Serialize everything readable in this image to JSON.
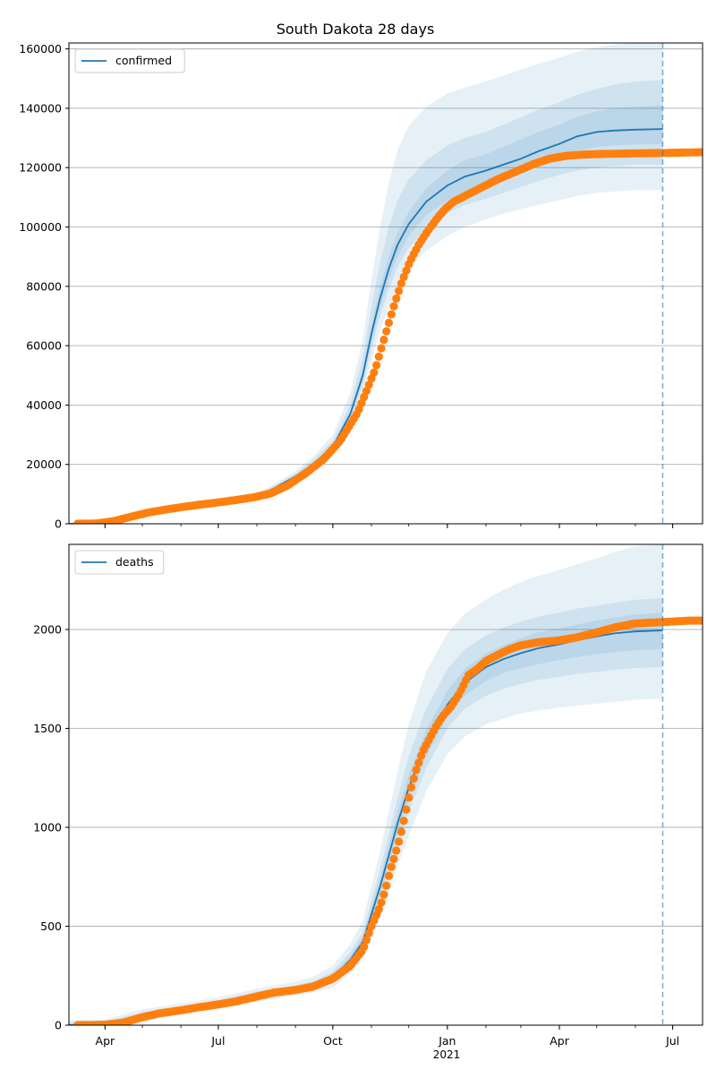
{
  "title": "South Dakota 28 days",
  "colors": {
    "model_line": "#1f77b4",
    "observed": "#ff7f0e",
    "band": "#1f77b4",
    "grid": "#b0b0b0",
    "forecast_marker": "#1f77b4"
  },
  "x_axis": {
    "tick_labels": [
      "Apr",
      "Jul",
      "Oct",
      "Jan",
      "Apr",
      "Jul"
    ],
    "tick_dates": [
      "2020-04-01",
      "2020-07-01",
      "2020-10-01",
      "2021-01-01",
      "2021-04-01",
      "2021-07-01"
    ],
    "year_label": "2021",
    "range": [
      "2020-03-03",
      "2021-07-25"
    ],
    "forecast_date": "2021-06-23"
  },
  "chart_data": [
    {
      "type": "line",
      "name": "confirmed-panel",
      "legend": "confirmed",
      "legend_position": "upper left",
      "grid": "y",
      "ylim": [
        0,
        162000
      ],
      "yticks": [
        0,
        20000,
        40000,
        60000,
        80000,
        100000,
        120000,
        140000,
        160000
      ],
      "ytick_labels": [
        "0",
        "20000",
        "40000",
        "60000",
        "80000",
        "100000",
        "120000",
        "140000",
        "160000"
      ],
      "model": {
        "x": [
          "2020-03-03",
          "2020-04-01",
          "2020-05-01",
          "2020-06-01",
          "2020-07-01",
          "2020-08-01",
          "2020-08-15",
          "2020-09-01",
          "2020-09-15",
          "2020-10-01",
          "2020-10-15",
          "2020-10-25",
          "2020-11-01",
          "2020-11-08",
          "2020-11-15",
          "2020-11-22",
          "2020-12-01",
          "2020-12-15",
          "2021-01-01",
          "2021-01-15",
          "2021-02-01",
          "2021-02-15",
          "2021-03-01",
          "2021-03-15",
          "2021-04-01",
          "2021-04-15",
          "2021-05-01",
          "2021-05-15",
          "2021-06-01",
          "2021-06-23"
        ],
        "y": [
          0,
          300,
          3800,
          5600,
          7300,
          9300,
          12000,
          16000,
          20000,
          26000,
          37000,
          50000,
          64000,
          76000,
          86000,
          94000,
          101000,
          108500,
          114000,
          117000,
          119000,
          121000,
          123000,
          125500,
          128000,
          130500,
          132000,
          132500,
          132800,
          133000
        ]
      },
      "bands": [
        {
          "label": "outer",
          "x": [
            "2020-03-03",
            "2020-04-01",
            "2020-05-01",
            "2020-06-01",
            "2020-07-01",
            "2020-08-01",
            "2020-08-15",
            "2020-09-01",
            "2020-09-15",
            "2020-10-01",
            "2020-10-15",
            "2020-10-25",
            "2020-11-01",
            "2020-11-08",
            "2020-11-15",
            "2020-11-22",
            "2020-12-01",
            "2020-12-15",
            "2021-01-01",
            "2021-01-15",
            "2021-02-01",
            "2021-02-15",
            "2021-03-01",
            "2021-03-15",
            "2021-04-01",
            "2021-04-15",
            "2021-05-01",
            "2021-05-15",
            "2021-06-01",
            "2021-06-23"
          ],
          "low": [
            0,
            250,
            3300,
            5000,
            6700,
            8600,
            11000,
            14800,
            18500,
            23500,
            33000,
            43500,
            55000,
            65000,
            73000,
            80000,
            86000,
            92000,
            97000,
            100000,
            102500,
            104500,
            106000,
            107500,
            109000,
            110500,
            111500,
            112000,
            112500,
            112500
          ],
          "high": [
            0,
            400,
            4400,
            6300,
            8100,
            10300,
            13400,
            17800,
            22500,
            30000,
            44000,
            62000,
            82000,
            100000,
            115000,
            126000,
            134000,
            140500,
            145000,
            147000,
            149000,
            151000,
            153000,
            155000,
            157000,
            159000,
            160500,
            161500,
            162000,
            162000
          ]
        },
        {
          "label": "middle",
          "x": [
            "2020-03-03",
            "2020-04-01",
            "2020-05-01",
            "2020-06-01",
            "2020-07-01",
            "2020-08-01",
            "2020-08-15",
            "2020-09-01",
            "2020-09-15",
            "2020-10-01",
            "2020-10-15",
            "2020-10-25",
            "2020-11-01",
            "2020-11-08",
            "2020-11-15",
            "2020-11-22",
            "2020-12-01",
            "2020-12-15",
            "2021-01-01",
            "2021-01-15",
            "2021-02-01",
            "2021-02-15",
            "2021-03-01",
            "2021-03-15",
            "2021-04-01",
            "2021-04-15",
            "2021-05-01",
            "2021-05-15",
            "2021-06-01",
            "2021-06-23"
          ],
          "low": [
            0,
            270,
            3500,
            5300,
            7000,
            9000,
            11500,
            15400,
            19200,
            24800,
            35000,
            46500,
            59000,
            70000,
            79000,
            86500,
            93000,
            99500,
            104500,
            107500,
            109500,
            111500,
            113500,
            115500,
            117500,
            119000,
            120000,
            120500,
            121000,
            121000
          ],
          "high": [
            0,
            350,
            4150,
            5950,
            7700,
            9800,
            12800,
            17000,
            21400,
            28000,
            40500,
            56000,
            73000,
            88000,
            100000,
            109000,
            116000,
            122500,
            127500,
            130000,
            132000,
            134500,
            137000,
            139500,
            142000,
            144500,
            146500,
            148000,
            149000,
            149500
          ]
        },
        {
          "label": "inner",
          "x": [
            "2020-03-03",
            "2020-04-01",
            "2020-05-01",
            "2020-06-01",
            "2020-07-01",
            "2020-08-01",
            "2020-08-15",
            "2020-09-01",
            "2020-09-15",
            "2020-10-01",
            "2020-10-15",
            "2020-10-25",
            "2020-11-01",
            "2020-11-08",
            "2020-11-15",
            "2020-11-22",
            "2020-12-01",
            "2020-12-15",
            "2021-01-01",
            "2021-01-15",
            "2021-02-01",
            "2021-02-15",
            "2021-03-01",
            "2021-03-15",
            "2021-04-01",
            "2021-04-15",
            "2021-05-01",
            "2021-05-15",
            "2021-06-01",
            "2021-06-23"
          ],
          "low": [
            0,
            285,
            3650,
            5450,
            7150,
            9150,
            11750,
            15700,
            19600,
            25400,
            36000,
            48000,
            61500,
            73000,
            82500,
            90000,
            97000,
            104000,
            109000,
            112000,
            114000,
            116000,
            118500,
            121000,
            123500,
            125500,
            127000,
            127500,
            127800,
            128000
          ],
          "high": [
            0,
            320,
            3950,
            5750,
            7450,
            9450,
            12250,
            16300,
            20400,
            26600,
            38000,
            52000,
            67000,
            80000,
            90000,
            98000,
            105000,
            113000,
            119000,
            122500,
            124500,
            127000,
            129500,
            132000,
            134500,
            137000,
            139000,
            140000,
            140500,
            141000
          ]
        }
      ],
      "observed": {
        "x": [
          "2020-03-10",
          "2020-03-25",
          "2020-04-08",
          "2020-04-22",
          "2020-05-06",
          "2020-05-20",
          "2020-06-03",
          "2020-06-17",
          "2020-07-01",
          "2020-07-15",
          "2020-07-29",
          "2020-08-12",
          "2020-08-26",
          "2020-09-09",
          "2020-09-23",
          "2020-10-07",
          "2020-10-21",
          "2020-11-04",
          "2020-11-11",
          "2020-11-18",
          "2020-11-25",
          "2020-12-02",
          "2020-12-09",
          "2020-12-16",
          "2020-12-23",
          "2020-12-30",
          "2021-01-06",
          "2021-01-13",
          "2021-01-20",
          "2021-01-27",
          "2021-02-03",
          "2021-02-10",
          "2021-02-24",
          "2021-03-10",
          "2021-03-24",
          "2021-04-07",
          "2021-04-21",
          "2021-05-05",
          "2021-05-19",
          "2021-06-02",
          "2021-06-16",
          "2021-06-30",
          "2021-07-14",
          "2021-07-25"
        ],
        "y": [
          10,
          100,
          900,
          2400,
          3800,
          4800,
          5700,
          6500,
          7200,
          8000,
          8900,
          10200,
          13000,
          17000,
          21500,
          28000,
          37500,
          52000,
          62000,
          72000,
          81000,
          88500,
          94000,
          98500,
          102500,
          106000,
          108500,
          110000,
          111500,
          113000,
          114500,
          116000,
          118500,
          121000,
          123000,
          124000,
          124400,
          124600,
          124700,
          124800,
          124900,
          125000,
          125100,
          125200
        ]
      }
    },
    {
      "type": "line",
      "name": "deaths-panel",
      "legend": "deaths",
      "legend_position": "upper left",
      "grid": "y",
      "ylim": [
        0,
        2430
      ],
      "yticks": [
        0,
        500,
        1000,
        1500,
        2000
      ],
      "ytick_labels": [
        "0",
        "500",
        "1000",
        "1500",
        "2000"
      ],
      "model": {
        "x": [
          "2020-03-03",
          "2020-04-01",
          "2020-05-01",
          "2020-06-01",
          "2020-07-01",
          "2020-08-01",
          "2020-09-01",
          "2020-09-15",
          "2020-10-01",
          "2020-10-15",
          "2020-10-25",
          "2020-11-01",
          "2020-11-08",
          "2020-11-15",
          "2020-11-22",
          "2020-12-01",
          "2020-12-15",
          "2021-01-01",
          "2021-01-15",
          "2021-02-01",
          "2021-02-15",
          "2021-03-01",
          "2021-03-15",
          "2021-04-01",
          "2021-04-15",
          "2021-05-01",
          "2021-05-15",
          "2021-06-01",
          "2021-06-23"
        ],
        "y": [
          0,
          10,
          50,
          80,
          110,
          150,
          180,
          200,
          240,
          330,
          420,
          560,
          700,
          860,
          1020,
          1200,
          1420,
          1620,
          1730,
          1810,
          1850,
          1880,
          1905,
          1925,
          1945,
          1965,
          1980,
          1990,
          1995
        ]
      },
      "bands": [
        {
          "label": "outer",
          "x": [
            "2020-03-03",
            "2020-04-01",
            "2020-05-01",
            "2020-06-01",
            "2020-07-01",
            "2020-08-01",
            "2020-09-01",
            "2020-09-15",
            "2020-10-01",
            "2020-10-15",
            "2020-10-25",
            "2020-11-01",
            "2020-11-08",
            "2020-11-15",
            "2020-11-22",
            "2020-12-01",
            "2020-12-15",
            "2021-01-01",
            "2021-01-15",
            "2021-02-01",
            "2021-02-15",
            "2021-03-01",
            "2021-03-15",
            "2021-04-01",
            "2021-04-15",
            "2021-05-01",
            "2021-05-15",
            "2021-06-01",
            "2021-06-23"
          ],
          "low": [
            0,
            0,
            30,
            60,
            85,
            120,
            150,
            165,
            190,
            260,
            330,
            430,
            540,
            670,
            800,
            960,
            1180,
            1370,
            1460,
            1520,
            1550,
            1575,
            1590,
            1605,
            1615,
            1625,
            1635,
            1645,
            1650
          ],
          "high": [
            25,
            30,
            80,
            110,
            140,
            185,
            220,
            245,
            300,
            410,
            530,
            700,
            880,
            1080,
            1280,
            1520,
            1790,
            1980,
            2080,
            2150,
            2200,
            2240,
            2270,
            2300,
            2330,
            2360,
            2390,
            2420,
            2430
          ]
        },
        {
          "label": "middle",
          "x": [
            "2020-03-03",
            "2020-04-01",
            "2020-05-01",
            "2020-06-01",
            "2020-07-01",
            "2020-08-01",
            "2020-09-01",
            "2020-09-15",
            "2020-10-01",
            "2020-10-15",
            "2020-10-25",
            "2020-11-01",
            "2020-11-08",
            "2020-11-15",
            "2020-11-22",
            "2020-12-01",
            "2020-12-15",
            "2021-01-01",
            "2021-01-15",
            "2021-02-01",
            "2021-02-15",
            "2021-03-01",
            "2021-03-15",
            "2021-04-01",
            "2021-04-15",
            "2021-05-01",
            "2021-05-15",
            "2021-06-01",
            "2021-06-23"
          ],
          "low": [
            0,
            5,
            40,
            70,
            95,
            135,
            165,
            180,
            215,
            295,
            375,
            495,
            620,
            770,
            920,
            1080,
            1300,
            1500,
            1600,
            1665,
            1700,
            1725,
            1745,
            1760,
            1775,
            1785,
            1795,
            1805,
            1810
          ],
          "high": [
            15,
            20,
            65,
            95,
            125,
            170,
            200,
            222,
            270,
            370,
            470,
            630,
            790,
            970,
            1150,
            1360,
            1600,
            1800,
            1900,
            1970,
            2010,
            2040,
            2065,
            2085,
            2105,
            2120,
            2135,
            2150,
            2160
          ]
        },
        {
          "label": "inner",
          "x": [
            "2020-03-03",
            "2020-04-01",
            "2020-05-01",
            "2020-06-01",
            "2020-07-01",
            "2020-08-01",
            "2020-09-01",
            "2020-09-15",
            "2020-10-01",
            "2020-10-15",
            "2020-10-25",
            "2020-11-01",
            "2020-11-08",
            "2020-11-15",
            "2020-11-22",
            "2020-12-01",
            "2020-12-15",
            "2021-01-01",
            "2021-01-15",
            "2021-02-01",
            "2021-02-15",
            "2021-03-01",
            "2021-03-15",
            "2021-04-01",
            "2021-04-15",
            "2021-05-01",
            "2021-05-15",
            "2021-06-01",
            "2021-06-23"
          ],
          "low": [
            0,
            8,
            46,
            76,
            104,
            145,
            174,
            191,
            228,
            313,
            398,
            528,
            660,
            815,
            970,
            1140,
            1360,
            1560,
            1665,
            1740,
            1780,
            1805,
            1825,
            1845,
            1860,
            1875,
            1885,
            1895,
            1900
          ],
          "high": [
            5,
            12,
            55,
            85,
            115,
            158,
            188,
            210,
            255,
            350,
            445,
            595,
            745,
            910,
            1075,
            1265,
            1490,
            1690,
            1800,
            1880,
            1920,
            1955,
            1985,
            2005,
            2025,
            2045,
            2060,
            2075,
            2085
          ]
        }
      ],
      "observed": {
        "x": [
          "2020-03-10",
          "2020-04-01",
          "2020-04-15",
          "2020-05-01",
          "2020-05-15",
          "2020-06-01",
          "2020-06-15",
          "2020-07-01",
          "2020-07-15",
          "2020-08-01",
          "2020-08-15",
          "2020-09-01",
          "2020-09-15",
          "2020-10-01",
          "2020-10-15",
          "2020-10-25",
          "2020-11-01",
          "2020-11-08",
          "2020-11-12",
          "2020-11-16",
          "2020-11-20",
          "2020-11-24",
          "2020-11-28",
          "2020-12-02",
          "2020-12-07",
          "2020-12-12",
          "2020-12-17",
          "2020-12-22",
          "2020-12-28",
          "2021-01-04",
          "2021-01-11",
          "2021-01-18",
          "2021-01-25",
          "2021-02-01",
          "2021-02-10",
          "2021-02-20",
          "2021-03-01",
          "2021-03-15",
          "2021-04-01",
          "2021-04-15",
          "2021-05-01",
          "2021-05-15",
          "2021-06-01",
          "2021-06-15",
          "2021-07-01",
          "2021-07-15",
          "2021-07-25"
        ],
        "y": [
          0,
          2,
          12,
          40,
          60,
          75,
          90,
          105,
          120,
          145,
          165,
          178,
          195,
          235,
          300,
          380,
          500,
          600,
          680,
          780,
          860,
          950,
          1060,
          1180,
          1290,
          1380,
          1440,
          1500,
          1560,
          1610,
          1680,
          1770,
          1800,
          1840,
          1870,
          1900,
          1920,
          1935,
          1945,
          1960,
          1985,
          2010,
          2030,
          2035,
          2040,
          2045,
          2045
        ]
      }
    }
  ]
}
